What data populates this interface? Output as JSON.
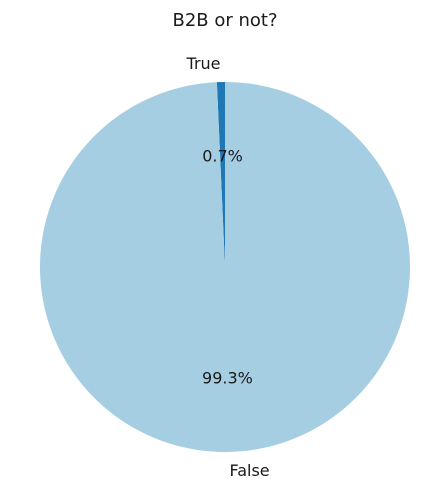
{
  "chart_data": {
    "type": "pie",
    "title": "B2B or not?",
    "slices": [
      {
        "label": "True",
        "value": 0.7,
        "pct_label": "0.7%",
        "color": "#1f78b4"
      },
      {
        "label": "False",
        "value": 99.3,
        "pct_label": "99.3%",
        "color": "#a6cee3"
      }
    ],
    "start_angle_deg": 90,
    "direction": "counterclockwise",
    "legend": "none"
  }
}
